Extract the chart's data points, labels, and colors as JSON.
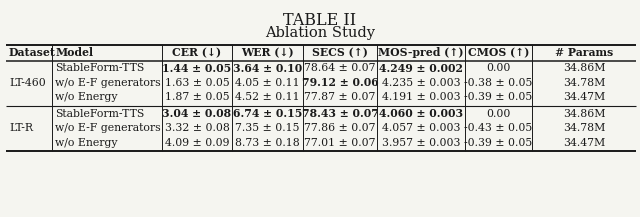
{
  "title": "TABLE II",
  "subtitle": "Ablation Study",
  "headers": [
    "Dataset",
    "Model",
    "CER (↓)",
    "WER (↓)",
    "SECS (↑)",
    "MOS-pred (↑)",
    "CMOS (↑)",
    "# Params"
  ],
  "groups": [
    {
      "dataset": "LT-460",
      "rows": [
        [
          "StableForm-TTS",
          "B:1.44 ± 0.05",
          "B:3.64 ± 0.10",
          "78.64 ± 0.07",
          "B:4.249 ± 0.002",
          "0.00",
          "34.86M"
        ],
        [
          "w/o E-F generators",
          "1.63 ± 0.05",
          "4.05 ± 0.11",
          "B:79.12 ± 0.06",
          "4.235 ± 0.003",
          "-0.38 ± 0.05",
          "34.78M"
        ],
        [
          "w/o Energy",
          "1.87 ± 0.05",
          "4.52 ± 0.11",
          "77.87 ± 0.07",
          "4.191 ± 0.003",
          "-0.39 ± 0.05",
          "34.47M"
        ]
      ]
    },
    {
      "dataset": "LT-R",
      "rows": [
        [
          "StableForm-TTS",
          "B:3.04 ± 0.08",
          "B:6.74 ± 0.15",
          "B:78.43 ± 0.07",
          "B:4.060 ± 0.003",
          "0.00",
          "34.86M"
        ],
        [
          "w/o E-F generators",
          "3.32 ± 0.08",
          "7.35 ± 0.15",
          "77.86 ± 0.07",
          "4.057 ± 0.003",
          "-0.43 ± 0.05",
          "34.78M"
        ],
        [
          "w/o Energy",
          "4.09 ± 0.09",
          "8.73 ± 0.18",
          "77.01 ± 0.07",
          "3.957 ± 0.003",
          "-0.39 ± 0.05",
          "34.47M"
        ]
      ]
    }
  ],
  "bg_color": "#f5f5f0",
  "text_color": "#1a1a1a",
  "fontsize": 7.8,
  "title_fontsize": 11.5,
  "subtitle_fontsize": 10.5
}
